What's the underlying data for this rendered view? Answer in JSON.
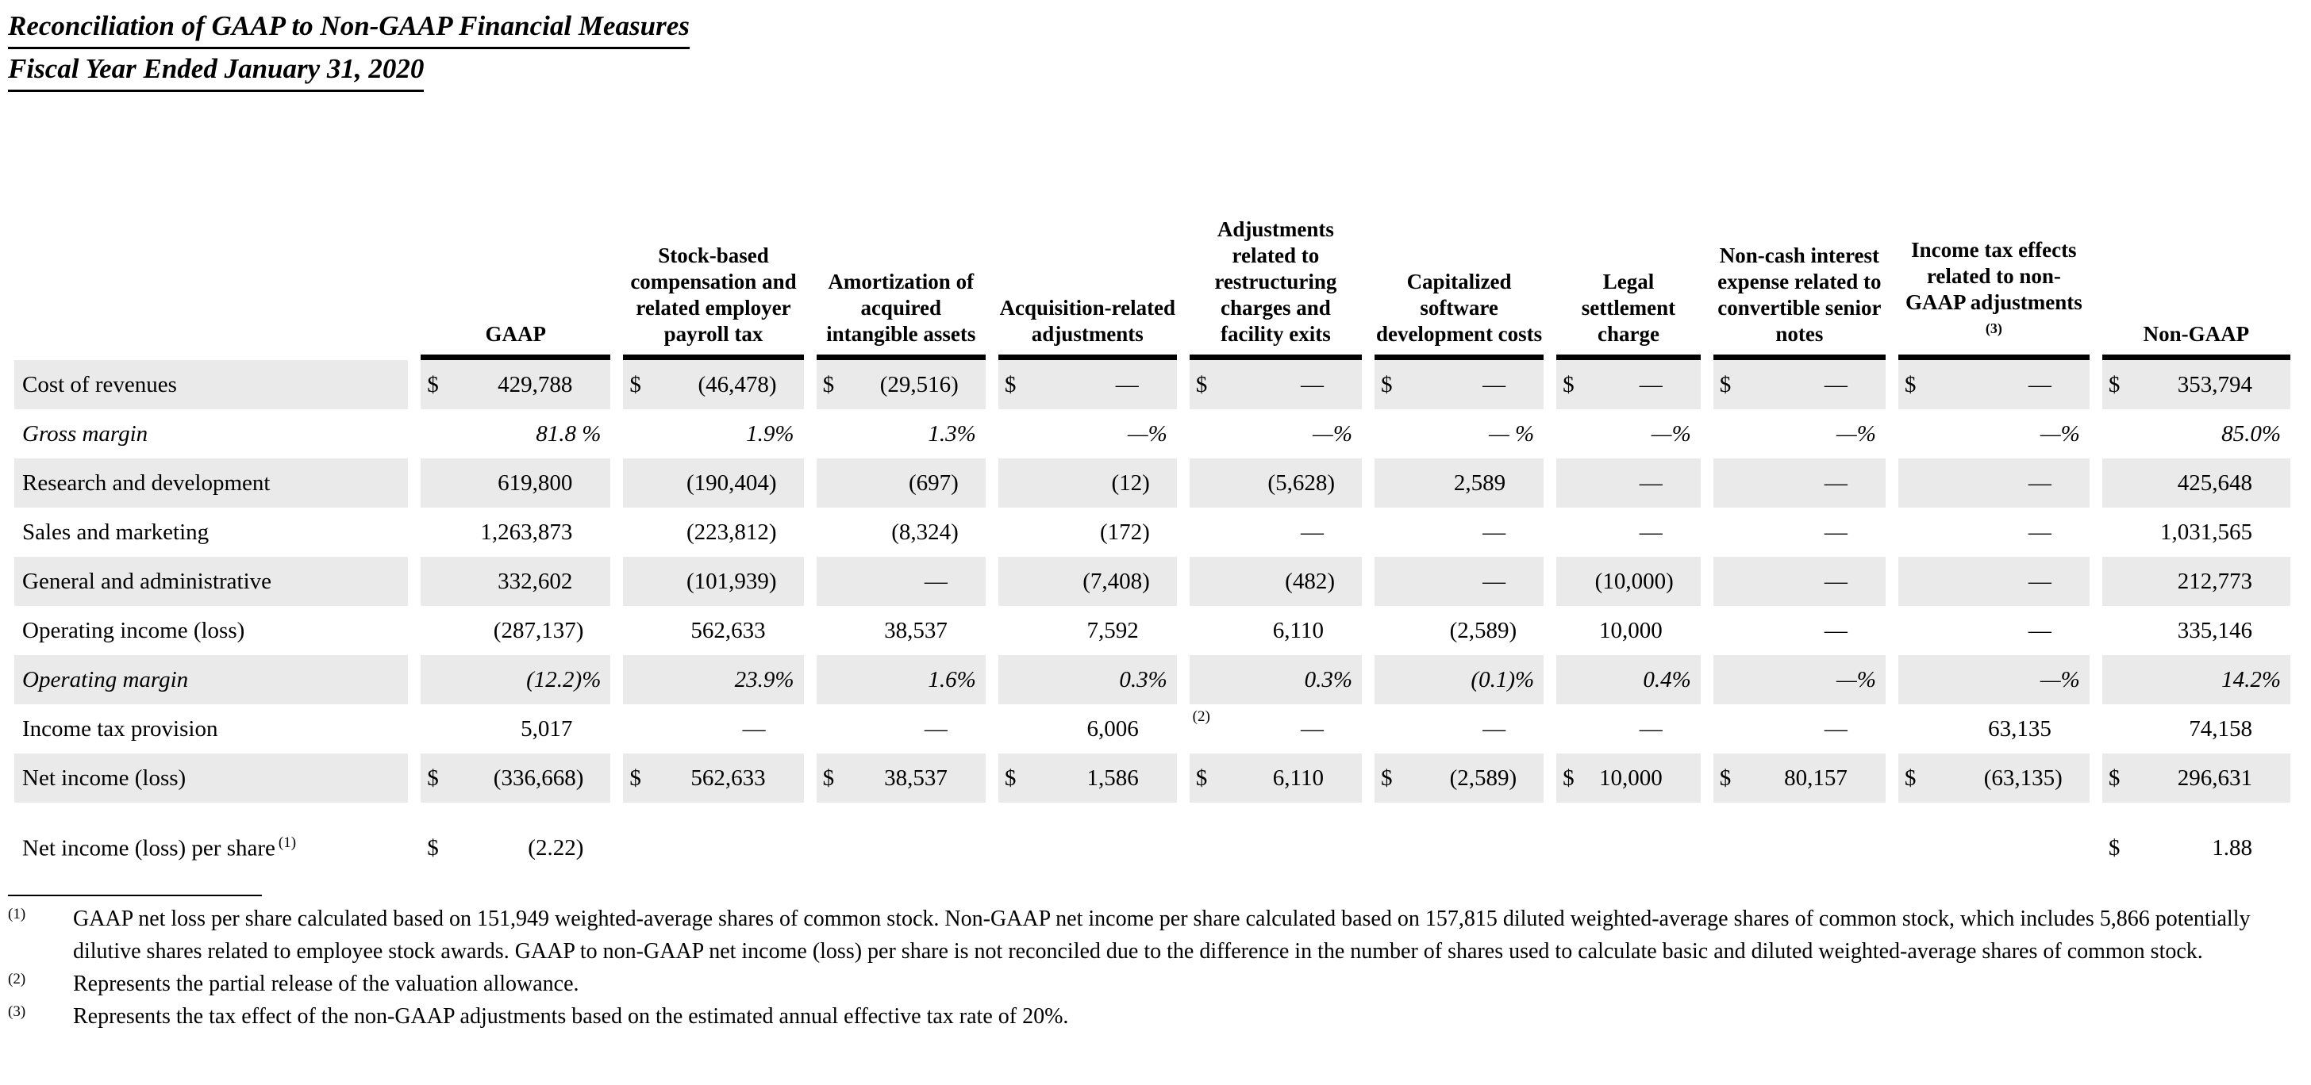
{
  "title": {
    "line1": "Reconciliation of GAAP to Non-GAAP Financial Measures",
    "line2": "Fiscal Year Ended January 31, 2020"
  },
  "table": {
    "columns": [
      {
        "label": "GAAP"
      },
      {
        "label": "Stock-based compensation and related employer payroll tax"
      },
      {
        "label": "Amortization of acquired intangible assets"
      },
      {
        "label": "Acquisition-related adjustments"
      },
      {
        "label": "Adjustments related to restructuring charges and facility exits"
      },
      {
        "label": "Capitalized software development costs"
      },
      {
        "label": "Legal settlement charge"
      },
      {
        "label": "Non-cash interest expense related to convertible senior notes"
      },
      {
        "label": "Income tax effects related to non-GAAP adjustments",
        "sup": "(3)"
      },
      {
        "label": "Non-GAAP"
      }
    ],
    "rows": [
      {
        "label": "Cost of revenues",
        "type": "money",
        "shaded": true,
        "values": [
          "429,788",
          "(46,478)",
          "(29,516)",
          "—",
          "—",
          "—",
          "—",
          "—",
          "—",
          "353,794"
        ]
      },
      {
        "label": "Gross margin",
        "type": "percent",
        "shaded": false,
        "values": [
          "81.8 %",
          "1.9%",
          "1.3%",
          "—%",
          "—%",
          "— %",
          "—%",
          "—%",
          "—%",
          "85.0%"
        ]
      },
      {
        "label": "Research and development",
        "type": "number",
        "shaded": true,
        "values": [
          "619,800",
          "(190,404)",
          "(697)",
          "(12)",
          "(5,628)",
          "2,589",
          "—",
          "—",
          "—",
          "425,648"
        ]
      },
      {
        "label": "Sales and marketing",
        "type": "number",
        "shaded": false,
        "values": [
          "1,263,873",
          "(223,812)",
          "(8,324)",
          "(172)",
          "—",
          "—",
          "—",
          "—",
          "—",
          "1,031,565"
        ]
      },
      {
        "label": "General and administrative",
        "type": "number",
        "shaded": true,
        "values": [
          "332,602",
          "(101,939)",
          "—",
          "(7,408)",
          "(482)",
          "—",
          "(10,000)",
          "—",
          "—",
          "212,773"
        ]
      },
      {
        "label": "Operating income (loss)",
        "type": "number",
        "shaded": false,
        "values": [
          "(287,137)",
          "562,633",
          "38,537",
          "7,592",
          "6,110",
          "(2,589)",
          "10,000",
          "—",
          "—",
          "335,146"
        ]
      },
      {
        "label": "Operating margin",
        "type": "percent",
        "shaded": true,
        "values": [
          "(12.2)%",
          "23.9%",
          "1.6%",
          "0.3%",
          "0.3%",
          "(0.1)%",
          "0.4%",
          "—%",
          "—%",
          "14.2%"
        ]
      },
      {
        "label": "Income tax provision",
        "type": "number",
        "shaded": false,
        "values": [
          "5,017",
          "—",
          "—",
          "6,006",
          "—",
          "—",
          "—",
          "—",
          "63,135",
          "74,158"
        ],
        "value_sups": {
          "3": "(2)"
        }
      },
      {
        "label": "Net income (loss)",
        "type": "money",
        "shaded": true,
        "values": [
          "(336,668)",
          "562,633",
          "38,537",
          "1,586",
          "6,110",
          "(2,589)",
          "10,000",
          "80,157",
          "(63,135)",
          "296,631"
        ]
      },
      {
        "label": "Net income (loss) per share",
        "label_sup": "(1)",
        "type": "money",
        "shaded": false,
        "gap_before": true,
        "values": [
          "(2.22)",
          "",
          "",
          "",
          "",
          "",
          "",
          "",
          "",
          "1.88"
        ]
      }
    ]
  },
  "footnotes": [
    {
      "marker": "(1)",
      "text": "GAAP net loss per share calculated based on 151,949 weighted-average shares of common stock. Non-GAAP net income per share calculated based on 157,815 diluted weighted-average shares of common stock, which includes 5,866 potentially dilutive shares related to employee stock awards. GAAP to non-GAAP net income (loss) per share is not reconciled due to the difference in the number of shares used to calculate basic and diluted weighted-average shares of common stock."
    },
    {
      "marker": "(2)",
      "text": "Represents the partial release of the valuation allowance."
    },
    {
      "marker": "(3)",
      "text": "Represents the tax effect of the non-GAAP adjustments based on the estimated annual effective tax rate of 20%."
    }
  ]
}
